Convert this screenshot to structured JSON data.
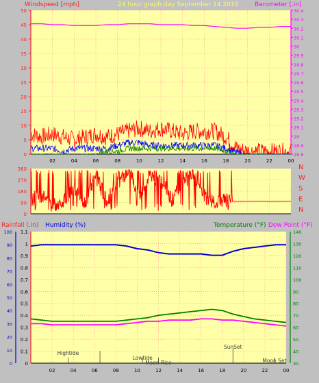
{
  "colors": {
    "bg": "#c0c0c0",
    "plot_bg": "#ffffa8",
    "grid": "#ff9090",
    "wind_axis": "#ff2020",
    "baro": "#ff00ff",
    "title": "#ffff40",
    "humidity": "#0000d0",
    "temperature": "#008000",
    "dewpoint": "#ff00ff",
    "gust": "#ff0000",
    "avg_wind": "#0000ff",
    "low_wind": "#008000",
    "direction": "#ff0000",
    "tide_markers": "#404040"
  },
  "chart_data": [
    {
      "type": "line",
      "name": "wind-baro-panel",
      "title": "24 hour graph day   September 14 2018",
      "ylabel_left": "Windspeed [mph]",
      "ylabel_right": "Barometer [.in]",
      "ylim_left": [
        0,
        50
      ],
      "ylim_right": [
        28.8,
        30.4
      ],
      "yticks_left": [
        "0",
        "5",
        "10",
        "15",
        "20",
        "25",
        "30",
        "35",
        "40",
        "45",
        "50"
      ],
      "yticks_right": [
        "28.8",
        "28.9",
        "29",
        "29.1",
        "29.2",
        "29.3",
        "29.4",
        "29.5",
        "29.6",
        "29.7",
        "29.8",
        "29.9",
        "30",
        "30.1",
        "30.2",
        "30.3",
        "30.4"
      ],
      "x": [
        0,
        1,
        2,
        3,
        4,
        5,
        6,
        7,
        8,
        9,
        10,
        11,
        12,
        13,
        14,
        15,
        16,
        17,
        18,
        19,
        20,
        21,
        22,
        23,
        24
      ],
      "xticks": [
        "02",
        "04",
        "06",
        "08",
        "10",
        "12",
        "14",
        "16",
        "18",
        "20",
        "22",
        "00"
      ],
      "series": [
        {
          "key": "barometer",
          "axis": "right",
          "values": [
            30.25,
            30.25,
            30.24,
            30.24,
            30.23,
            30.23,
            30.23,
            30.24,
            30.24,
            30.25,
            30.25,
            30.25,
            30.24,
            30.24,
            30.24,
            30.23,
            30.23,
            30.22,
            30.21,
            30.2,
            30.2,
            30.21,
            30.21,
            30.22,
            30.22
          ]
        },
        {
          "key": "gust",
          "axis": "left",
          "values": [
            7,
            6,
            7,
            6,
            5,
            6,
            7,
            6,
            7,
            8,
            9,
            8,
            9,
            8,
            7,
            8,
            8,
            8,
            6,
            2,
            1,
            1,
            1,
            1,
            1
          ]
        },
        {
          "key": "avg",
          "axis": "left",
          "values": [
            2,
            2,
            2,
            1,
            2,
            2,
            2,
            2,
            3,
            4,
            4,
            3,
            3,
            3,
            3,
            3,
            3,
            3,
            2,
            0.5,
            0,
            0,
            0,
            0,
            0
          ]
        },
        {
          "key": "low",
          "axis": "left",
          "values": [
            0,
            0,
            0,
            0,
            0,
            0,
            0,
            1,
            1,
            2,
            2,
            2,
            2,
            2,
            2,
            2,
            2,
            2,
            1,
            0,
            0,
            0,
            0,
            0,
            0
          ]
        }
      ]
    },
    {
      "type": "line",
      "name": "wind-direction-panel",
      "ylim": [
        0,
        360
      ],
      "yticks": [
        "0",
        "90",
        "180",
        "270",
        "360"
      ],
      "compass_labels": [
        "N",
        "W",
        "S",
        "E",
        "N"
      ],
      "x": [
        0,
        1,
        2,
        3,
        4,
        5,
        6,
        7,
        8,
        9,
        10,
        11,
        12,
        13,
        14,
        15,
        16,
        17,
        18,
        19,
        20,
        21,
        22,
        23,
        24
      ],
      "values": [
        110,
        150,
        60,
        110,
        200,
        90,
        300,
        100,
        250,
        320,
        130,
        300,
        270,
        110,
        250,
        320,
        140,
        90,
        110,
        100,
        100,
        100,
        100,
        100,
        100
      ]
    },
    {
      "type": "line",
      "name": "humidity-temp-panel",
      "ylabel_left_a": "Rainfall (.in)",
      "ylabel_left_b": "Humidity (%)",
      "ylabel_right_a": "Temperature (°F)",
      "ylabel_right_b": "Dew Point (°F)",
      "ylim_rain": [
        0,
        1.1
      ],
      "ylim_humidity": [
        0,
        100
      ],
      "ylim_temp": [
        30,
        140
      ],
      "yticks_rain": [
        "0",
        "0.1",
        "0.2",
        "0.3",
        "0.4",
        "0.5",
        "0.6",
        "0.7",
        "0.8",
        "0.9",
        "1",
        "1.1"
      ],
      "yticks_humidity": [
        "0",
        "10",
        "20",
        "30",
        "40",
        "50",
        "60",
        "70",
        "80",
        "90",
        "100"
      ],
      "yticks_temp": [
        "30",
        "40",
        "50",
        "60",
        "70",
        "80",
        "90",
        "100",
        "110",
        "120",
        "130",
        "140"
      ],
      "x": [
        0,
        1,
        2,
        3,
        4,
        5,
        6,
        7,
        8,
        9,
        10,
        11,
        12,
        13,
        14,
        15,
        16,
        17,
        18,
        19,
        20,
        21,
        22,
        23,
        24
      ],
      "xticks": [
        "02",
        "04",
        "06",
        "08",
        "10",
        "12",
        "14",
        "16",
        "18",
        "20",
        "22",
        "00"
      ],
      "series": [
        {
          "key": "humidity",
          "axis": "humidity",
          "values": [
            89,
            90,
            90,
            90,
            90,
            90,
            90,
            90,
            90,
            89,
            87,
            86,
            84,
            83,
            83,
            83,
            83,
            82,
            82,
            85,
            87,
            88,
            89,
            90,
            90
          ]
        },
        {
          "key": "temperature",
          "axis": "temp",
          "values": [
            67,
            66,
            65,
            65,
            65,
            65,
            65,
            65,
            65,
            66,
            67,
            68,
            70,
            71,
            72,
            73,
            74,
            75,
            74,
            71,
            69,
            67,
            66,
            65,
            64
          ]
        },
        {
          "key": "dewpoint",
          "axis": "temp",
          "values": [
            63,
            63,
            62,
            62,
            62,
            62,
            62,
            62,
            62,
            63,
            64,
            65,
            65,
            66,
            66,
            66,
            67,
            67,
            66,
            66,
            65,
            64,
            63,
            62,
            61
          ]
        }
      ],
      "markers": [
        {
          "label": "Hightide",
          "x": 3.5,
          "level": 0
        },
        {
          "label": "Lowtide",
          "x": 10.5,
          "level": 1
        },
        {
          "label": "Moon Rise",
          "x": 12.0,
          "level": 2
        },
        {
          "label": "SunSet",
          "x": 19.0,
          "level": -1
        },
        {
          "label": "Moon Set",
          "x": 22.9,
          "level": 1.6
        }
      ],
      "tick_marks_only": [
        6.5
      ]
    }
  ]
}
